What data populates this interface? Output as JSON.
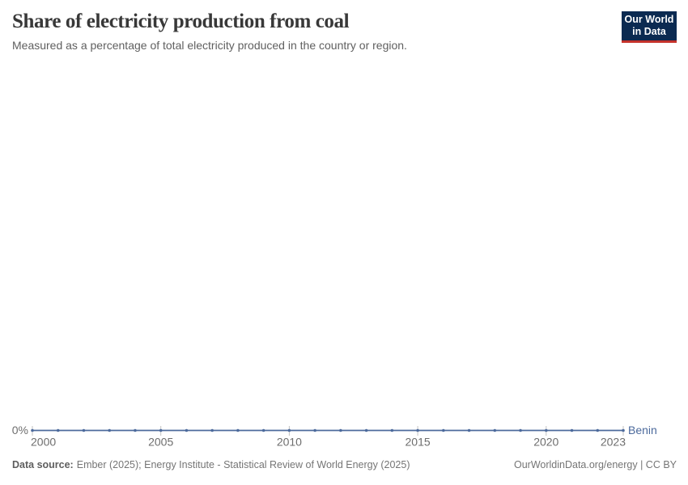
{
  "header": {
    "title": "Share of electricity production from coal",
    "subtitle": "Measured as a percentage of total electricity produced in the country or region."
  },
  "logo": {
    "line1": "Our World",
    "line2": "in Data",
    "bg_color": "#0b2a51",
    "bar_color": "#c5332b"
  },
  "chart_data": {
    "type": "line",
    "title": "Share of electricity production from coal",
    "subtitle": "Measured as a percentage of total electricity produced in the country or region.",
    "x": [
      2000,
      2001,
      2002,
      2003,
      2004,
      2005,
      2006,
      2007,
      2008,
      2009,
      2010,
      2011,
      2012,
      2013,
      2014,
      2015,
      2016,
      2017,
      2018,
      2019,
      2020,
      2021,
      2022,
      2023
    ],
    "series": [
      {
        "name": "Benin",
        "color": "#4c6a9c",
        "values": [
          0,
          0,
          0,
          0,
          0,
          0,
          0,
          0,
          0,
          0,
          0,
          0,
          0,
          0,
          0,
          0,
          0,
          0,
          0,
          0,
          0,
          0,
          0,
          0
        ]
      }
    ],
    "x_ticks": [
      2000,
      2005,
      2010,
      2015,
      2020,
      2023
    ],
    "y_tick_labels": [
      "0%"
    ],
    "ylim": [
      0,
      100
    ],
    "unit": "%",
    "grid": false,
    "legend": "end-of-line-label",
    "marker": "dot-every-year",
    "tick_color": "#c2c2c2",
    "axis_label_color": "#6e6e6e"
  },
  "footer": {
    "source_label": "Data source:",
    "source_text": "Ember (2025); Energy Institute - Statistical Review of World Energy (2025)",
    "link": "OurWorldinData.org/energy | CC BY"
  }
}
